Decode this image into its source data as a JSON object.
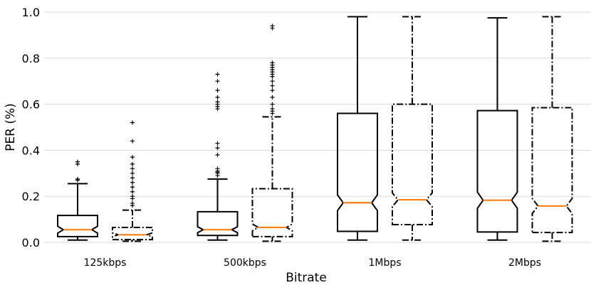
{
  "chart_data": {
    "type": "box",
    "xlabel": "Bitrate",
    "ylabel": "PER (%)",
    "ylim": [
      0.0,
      1.0
    ],
    "yticks": [
      "0.0",
      "0.2",
      "0.4",
      "0.6",
      "0.8",
      "1.0"
    ],
    "grid": "horizontal",
    "categories": [
      "125kbps",
      "500kbps",
      "1Mbps",
      "2Mbps"
    ],
    "series": [
      {
        "line_style": "solid",
        "boxes": [
          {
            "category": "125kbps",
            "whisker_low": 0.01,
            "q1": 0.025,
            "median": 0.055,
            "q3": 0.117,
            "whisker_high": 0.255,
            "notch_low": 0.04,
            "notch_high": 0.07,
            "outliers": [
              0.27,
              0.275,
              0.34,
              0.35
            ]
          },
          {
            "category": "500kbps",
            "whisker_low": 0.01,
            "q1": 0.03,
            "median": 0.055,
            "q3": 0.133,
            "whisker_high": 0.275,
            "notch_low": 0.042,
            "notch_high": 0.068,
            "outliers": [
              0.29,
              0.3,
              0.305,
              0.31,
              0.32,
              0.38,
              0.41,
              0.43,
              0.58,
              0.59,
              0.6,
              0.61,
              0.63,
              0.66,
              0.7,
              0.73
            ]
          },
          {
            "category": "1Mbps",
            "whisker_low": 0.01,
            "q1": 0.048,
            "median": 0.172,
            "q3": 0.56,
            "whisker_high": 0.98,
            "notch_low": 0.138,
            "notch_high": 0.206,
            "outliers": []
          },
          {
            "category": "2Mbps",
            "whisker_low": 0.01,
            "q1": 0.045,
            "median": 0.183,
            "q3": 0.572,
            "whisker_high": 0.975,
            "notch_low": 0.148,
            "notch_high": 0.218,
            "outliers": []
          }
        ]
      },
      {
        "line_style": "dashdot",
        "boxes": [
          {
            "category": "125kbps",
            "whisker_low": 0.005,
            "q1": 0.012,
            "median": 0.033,
            "q3": 0.065,
            "whisker_high": 0.14,
            "notch_low": 0.025,
            "notch_high": 0.041,
            "outliers": [
              0.16,
              0.17,
              0.19,
              0.2,
              0.22,
              0.24,
              0.26,
              0.28,
              0.3,
              0.32,
              0.34,
              0.37,
              0.44,
              0.52
            ]
          },
          {
            "category": "500kbps",
            "whisker_low": 0.005,
            "q1": 0.025,
            "median": 0.065,
            "q3": 0.233,
            "whisker_high": 0.545,
            "notch_low": 0.05,
            "notch_high": 0.08,
            "outliers": [
              0.56,
              0.57,
              0.58,
              0.6,
              0.63,
              0.66,
              0.68,
              0.7,
              0.72,
              0.73,
              0.74,
              0.75,
              0.76,
              0.77,
              0.78,
              0.93,
              0.94
            ]
          },
          {
            "category": "1Mbps",
            "whisker_low": 0.01,
            "q1": 0.077,
            "median": 0.185,
            "q3": 0.6,
            "whisker_high": 0.98,
            "notch_low": 0.155,
            "notch_high": 0.215,
            "outliers": []
          },
          {
            "category": "2Mbps",
            "whisker_low": 0.005,
            "q1": 0.043,
            "median": 0.158,
            "q3": 0.585,
            "whisker_high": 0.98,
            "notch_low": 0.125,
            "notch_high": 0.191,
            "outliers": []
          }
        ]
      }
    ],
    "colors": {
      "box": "#000000",
      "median": "#ff7f0e",
      "grid": "#d9d9d9"
    }
  }
}
